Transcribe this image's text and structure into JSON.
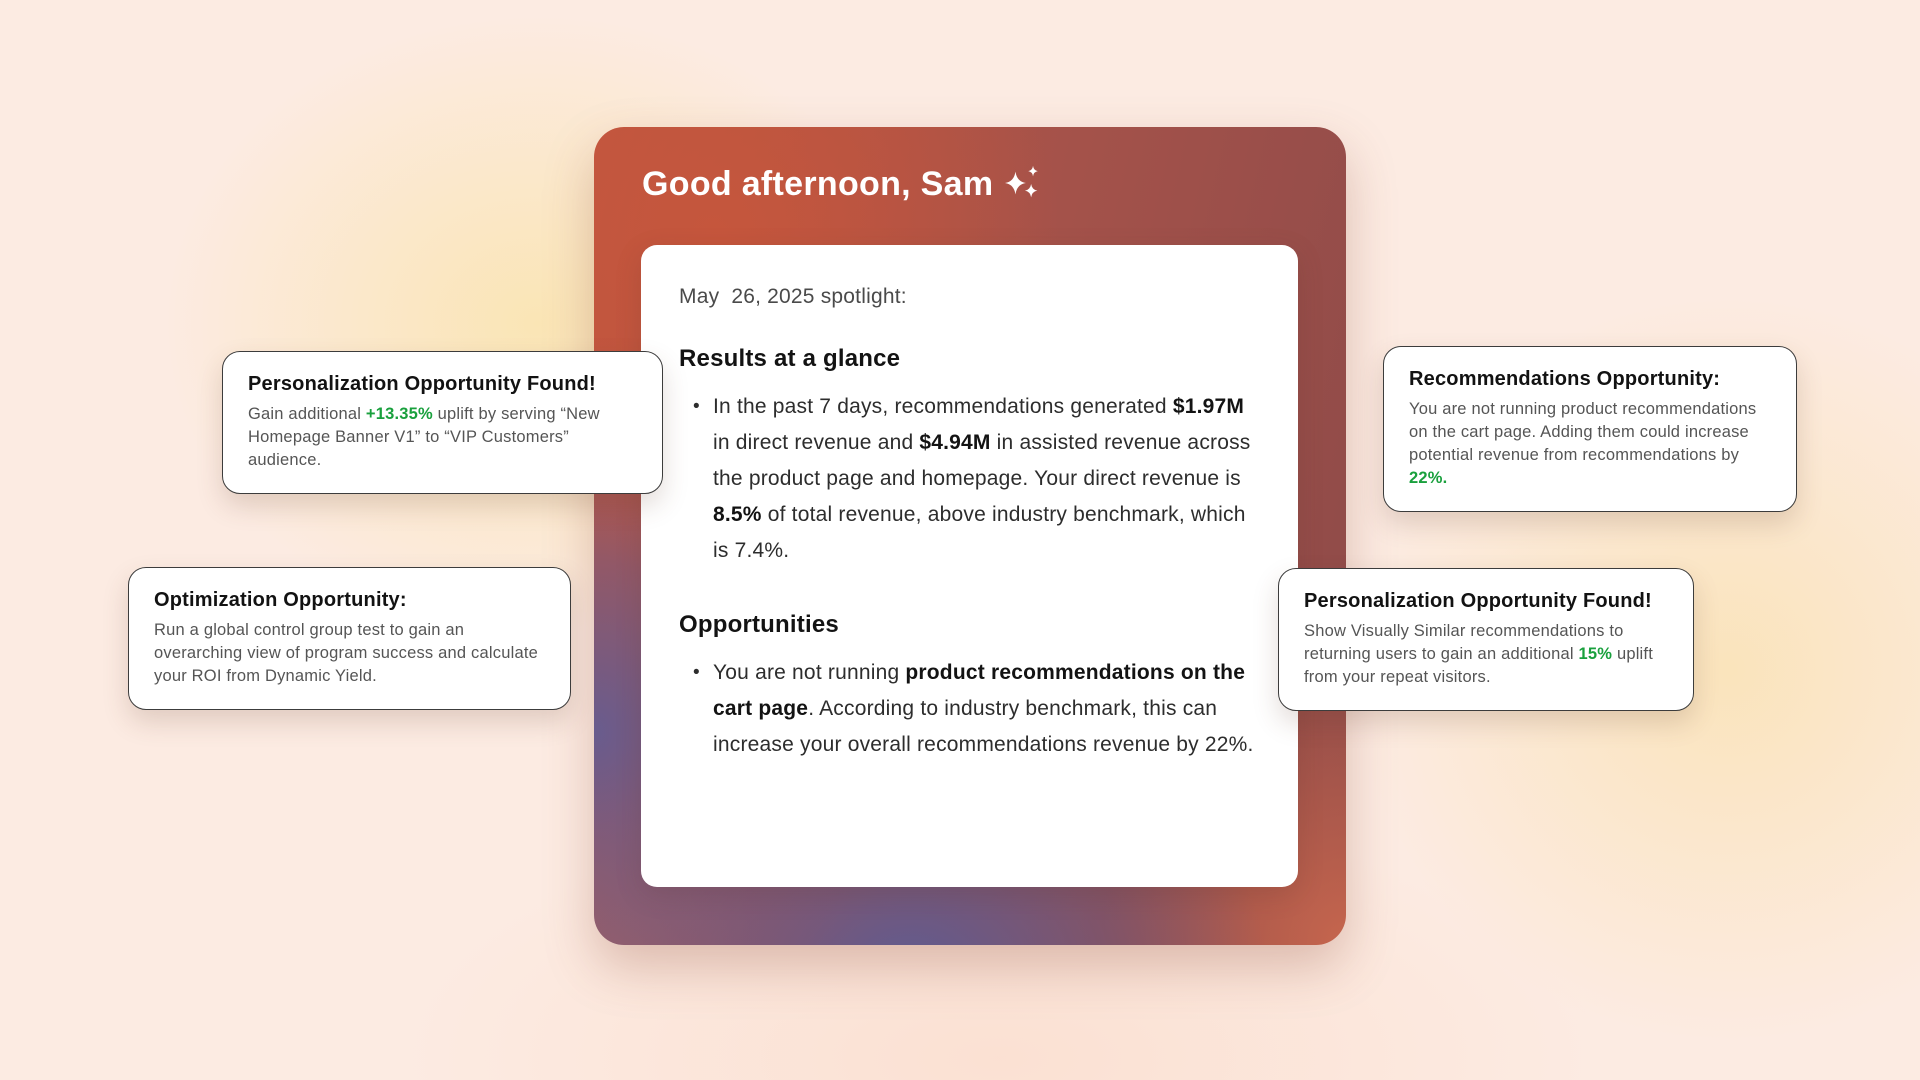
{
  "colors": {
    "accent_green": "#19a03d",
    "card_gradient_red": "#c05640",
    "card_gradient_maroon": "#8d4a49",
    "card_gradient_purple": "#5c5b94",
    "card_gradient_salmon": "#cb684e",
    "background_peach": "#fcebe2"
  },
  "main_card": {
    "greeting": "Good afternoon, Sam",
    "sparkles_icon": "ai-sparkles",
    "panel": {
      "date_line": "May  26, 2025 spotlight:",
      "sections": [
        {
          "heading": "Results at a glance",
          "bullets": [
            [
              {
                "t": "In the past 7 days, recommendations generated "
              },
              {
                "t": "$1.97M",
                "b": true
              },
              {
                "t": " in direct revenue and "
              },
              {
                "t": "$4.94M",
                "b": true
              },
              {
                "t": " in assisted revenue across the product page and homepage. Your direct revenue is "
              },
              {
                "t": "8.5%",
                "b": true
              },
              {
                "t": " of total revenue, above industry benchmark, which is 7.4%."
              }
            ]
          ]
        },
        {
          "heading": "Opportunities",
          "bullets": [
            [
              {
                "t": "You are not running "
              },
              {
                "t": "product recommendations on the cart page",
                "b": true
              },
              {
                "t": ". According to industry benchmark, this can increase your overall recommendations revenue by 22%."
              }
            ]
          ]
        }
      ]
    }
  },
  "floating_cards": [
    {
      "title": "Personalization Opportunity Found!",
      "body": [
        {
          "t": "Gain additional "
        },
        {
          "t": "+13.35%",
          "g": true
        },
        {
          "t": " uplift by serving “New Homepage Banner V1” to “VIP Customers” audience."
        }
      ]
    },
    {
      "title": "Optimization Opportunity:",
      "body": [
        {
          "t": "Run a global control group test to gain an overarching view of program success and calculate your ROI from Dynamic Yield."
        }
      ]
    },
    {
      "title": "Recommendations Opportunity:",
      "body": [
        {
          "t": "You are not running product recommendations on the cart page. Adding them could increase potential revenue from recommendations by "
        },
        {
          "t": "22%.",
          "g": true
        }
      ]
    },
    {
      "title": "Personalization Opportunity Found!",
      "body": [
        {
          "t": "Show Visually Similar recommendations to returning users to gain an additional "
        },
        {
          "t": "15%",
          "g": true
        },
        {
          "t": " uplift from your repeat visitors."
        }
      ]
    }
  ]
}
